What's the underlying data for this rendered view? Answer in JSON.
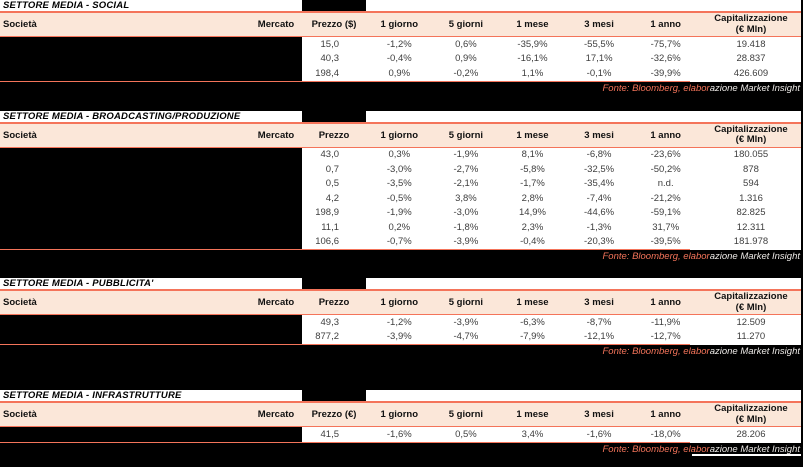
{
  "colors": {
    "accent_border": "#F4745A",
    "header_background": "#FBE7D9",
    "fonte_text": "#F4745A",
    "fonte_text_on_redaction": "#EDEAE7",
    "redaction": "#000000",
    "data_text": "#3E3E3E"
  },
  "fonte": {
    "part1": "Fonte: Bloomberg, elabor",
    "part2": "azione Market Insight"
  },
  "sections": [
    {
      "title": "SETTORE MEDIA - SOCIAL",
      "headers": {
        "societa": "Società",
        "mercato": "Mercato",
        "prezzo": "Prezzo ($)",
        "d1": "1 giorno",
        "d5": "5 giorni",
        "m1": "1 mese",
        "m3": "3 mesi",
        "y1": "1 anno",
        "cap1": "Capitalizzazione",
        "cap2": "(€ Mln)"
      },
      "rows": [
        {
          "prezzo": "15,0",
          "d1": "-1,2%",
          "d5": "0,6%",
          "m1": "-35,9%",
          "m3": "-55,5%",
          "y1": "-75,7%",
          "cap": "19.418"
        },
        {
          "prezzo": "40,3",
          "d1": "-0,4%",
          "d5": "0,9%",
          "m1": "-16,1%",
          "m3": "17,1%",
          "y1": "-32,6%",
          "cap": "28.837"
        },
        {
          "prezzo": "198,4",
          "d1": "0,9%",
          "d5": "-0,2%",
          "m1": "1,1%",
          "m3": "-0,1%",
          "y1": "-39,9%",
          "cap": "426.609"
        }
      ],
      "fonte": {
        "part1": "Fonte: Bloomberg, elabor",
        "part2": "azione Market Insight"
      }
    },
    {
      "title": "SETTORE MEDIA - BROADCASTING/PRODUZIONE",
      "headers": {
        "societa": "Società",
        "mercato": "Mercato",
        "prezzo": "Prezzo",
        "d1": "1 giorno",
        "d5": "5 giorni",
        "m1": "1 mese",
        "m3": "3 mesi",
        "y1": "1 anno",
        "cap1": "Capitalizzazione",
        "cap2": "(€ Mln)"
      },
      "rows": [
        {
          "prezzo": "43,0",
          "d1": "0,3%",
          "d5": "-1,9%",
          "m1": "8,1%",
          "m3": "-6,8%",
          "y1": "-23,6%",
          "cap": "180.055"
        },
        {
          "prezzo": "0,7",
          "d1": "-3,0%",
          "d5": "-2,7%",
          "m1": "-5,8%",
          "m3": "-32,5%",
          "y1": "-50,2%",
          "cap": "878"
        },
        {
          "prezzo": "0,5",
          "d1": "-3,5%",
          "d5": "-2,1%",
          "m1": "-1,7%",
          "m3": "-35,4%",
          "y1": "n.d.",
          "cap": "594"
        },
        {
          "prezzo": "4,2",
          "d1": "-0,5%",
          "d5": "3,8%",
          "m1": "2,8%",
          "m3": "-7,4%",
          "y1": "-21,2%",
          "cap": "1.316"
        },
        {
          "prezzo": "198,9",
          "d1": "-1,9%",
          "d5": "-3,0%",
          "m1": "14,9%",
          "m3": "-44,6%",
          "y1": "-59,1%",
          "cap": "82.825"
        },
        {
          "prezzo": "11,1",
          "d1": "0,2%",
          "d5": "-1,8%",
          "m1": "2,3%",
          "m3": "-1,3%",
          "y1": "31,7%",
          "cap": "12.311"
        },
        {
          "prezzo": "106,6",
          "d1": "-0,7%",
          "d5": "-3,9%",
          "m1": "-0,4%",
          "m3": "-20,3%",
          "y1": "-39,5%",
          "cap": "181.978"
        }
      ],
      "fonte": {
        "part1": "Fonte: Bloomberg, elabor",
        "part2": "azione Market Insight"
      }
    },
    {
      "title": "SETTORE MEDIA - PUBBLICITA'",
      "headers": {
        "societa": "Società",
        "mercato": "Mercato",
        "prezzo": "Prezzo",
        "d1": "1 giorno",
        "d5": "5 giorni",
        "m1": "1 mese",
        "m3": "3 mesi",
        "y1": "1 anno",
        "cap1": "Capitalizzazione",
        "cap2": "(€ Mln)"
      },
      "rows": [
        {
          "prezzo": "49,3",
          "d1": "-1,2%",
          "d5": "-3,9%",
          "m1": "-6,3%",
          "m3": "-8,7%",
          "y1": "-11,9%",
          "cap": "12.509"
        },
        {
          "prezzo": "877,2",
          "d1": "-3,9%",
          "d5": "-4,7%",
          "m1": "-7,9%",
          "m3": "-12,1%",
          "y1": "-12,7%",
          "cap": "11.270"
        }
      ],
      "fonte": {
        "part1": "Fonte: Bloomberg, elabor",
        "part2": "azione Market Insight"
      }
    },
    {
      "title": "SETTORE MEDIA - INFRASTRUTTURE",
      "headers": {
        "societa": "Società",
        "mercato": "Mercato",
        "prezzo": "Prezzo (€)",
        "d1": "1 giorno",
        "d5": "5 giorni",
        "m1": "1 mese",
        "m3": "3 mesi",
        "y1": "1 anno",
        "cap1": "Capitalizzazione",
        "cap2": "(€ Mln)"
      },
      "rows": [
        {
          "prezzo": "41,5",
          "d1": "-1,6%",
          "d5": "0,5%",
          "m1": "3,4%",
          "m3": "-1,6%",
          "y1": "-18,0%",
          "cap": "28.206"
        }
      ],
      "fonte": {
        "part1": "Fonte: Bloomberg, elabor",
        "part2": "azione Market Insight"
      }
    }
  ]
}
